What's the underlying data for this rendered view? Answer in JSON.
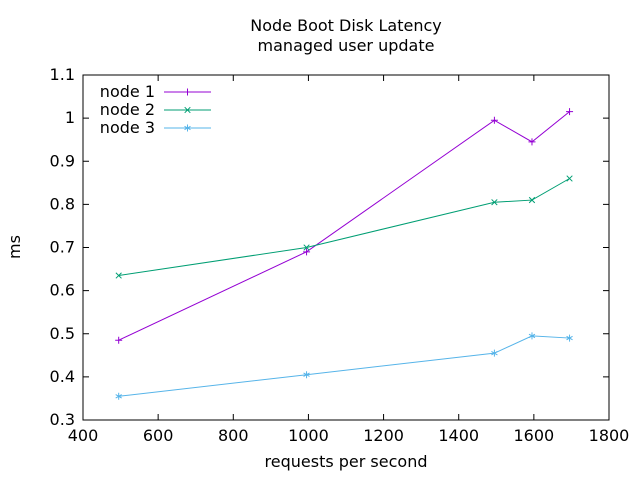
{
  "chart_data": {
    "type": "line",
    "title": "Node Boot Disk Latency",
    "subtitle": "managed user update",
    "xlabel": "requests per second",
    "ylabel": "ms",
    "xlim": [
      400,
      1800
    ],
    "ylim": [
      0.3,
      1.1
    ],
    "x_ticks": [
      400,
      600,
      800,
      1000,
      1200,
      1400,
      1600,
      1800
    ],
    "y_ticks": [
      0.3,
      0.4,
      0.5,
      0.6,
      0.7,
      0.8,
      0.9,
      1,
      1.1
    ],
    "grid": false,
    "legend_position": "top-left-inside",
    "axis_color": "#000000",
    "background_color": "#ffffff",
    "series": [
      {
        "name": "node 1",
        "color": "#9400d3",
        "marker": "plus",
        "x": [
          495,
          995,
          1495,
          1595,
          1695
        ],
        "y": [
          0.485,
          0.69,
          0.995,
          0.945,
          1.015
        ]
      },
      {
        "name": "node 2",
        "color": "#009e73",
        "marker": "cross",
        "x": [
          495,
          995,
          1495,
          1595,
          1695
        ],
        "y": [
          0.635,
          0.7,
          0.805,
          0.81,
          0.86
        ]
      },
      {
        "name": "node 3",
        "color": "#56b4e9",
        "marker": "asterisk",
        "x": [
          495,
          995,
          1495,
          1595,
          1695
        ],
        "y": [
          0.355,
          0.405,
          0.455,
          0.495,
          0.49
        ]
      }
    ]
  }
}
